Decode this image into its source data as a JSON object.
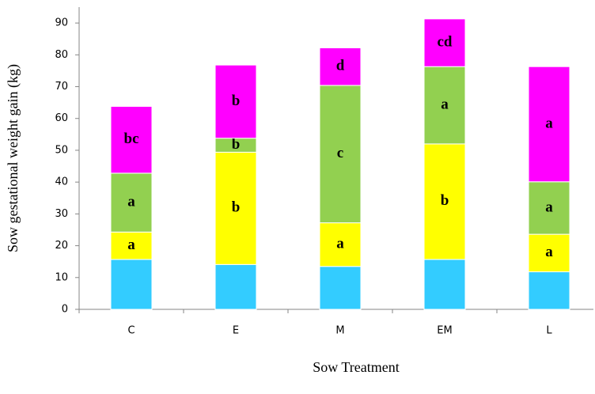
{
  "chart_data": {
    "type": "stacked_bar",
    "y_label": "Sow gestational weight gain (kg)",
    "x_label": "Sow Treatment",
    "categories": [
      "C",
      "E",
      "M",
      "EM",
      "L"
    ],
    "series": [
      {
        "color": "#33ccff",
        "values": [
          15.7,
          14.1,
          13.5,
          15.7,
          11.8
        ]
      },
      {
        "color": "#ffff00",
        "values": [
          8.6,
          35.3,
          13.7,
          36.3,
          11.8
        ],
        "labels": [
          "a",
          "b",
          "a",
          "b",
          "a"
        ]
      },
      {
        "color": "#92d050",
        "values": [
          18.5,
          4.4,
          43.2,
          24.3,
          16.5
        ],
        "labels": [
          "a",
          "b",
          "c",
          "a",
          "a"
        ]
      },
      {
        "color": "#ff00ff",
        "values": [
          21.0,
          23.0,
          11.8,
          15.0,
          36.2
        ],
        "labels": [
          "bc",
          "b",
          "d",
          "cd",
          "a"
        ]
      }
    ],
    "ylim": [
      0,
      95
    ],
    "yticks": [
      0,
      10,
      20,
      30,
      40,
      50,
      60,
      70,
      80,
      90
    ]
  }
}
